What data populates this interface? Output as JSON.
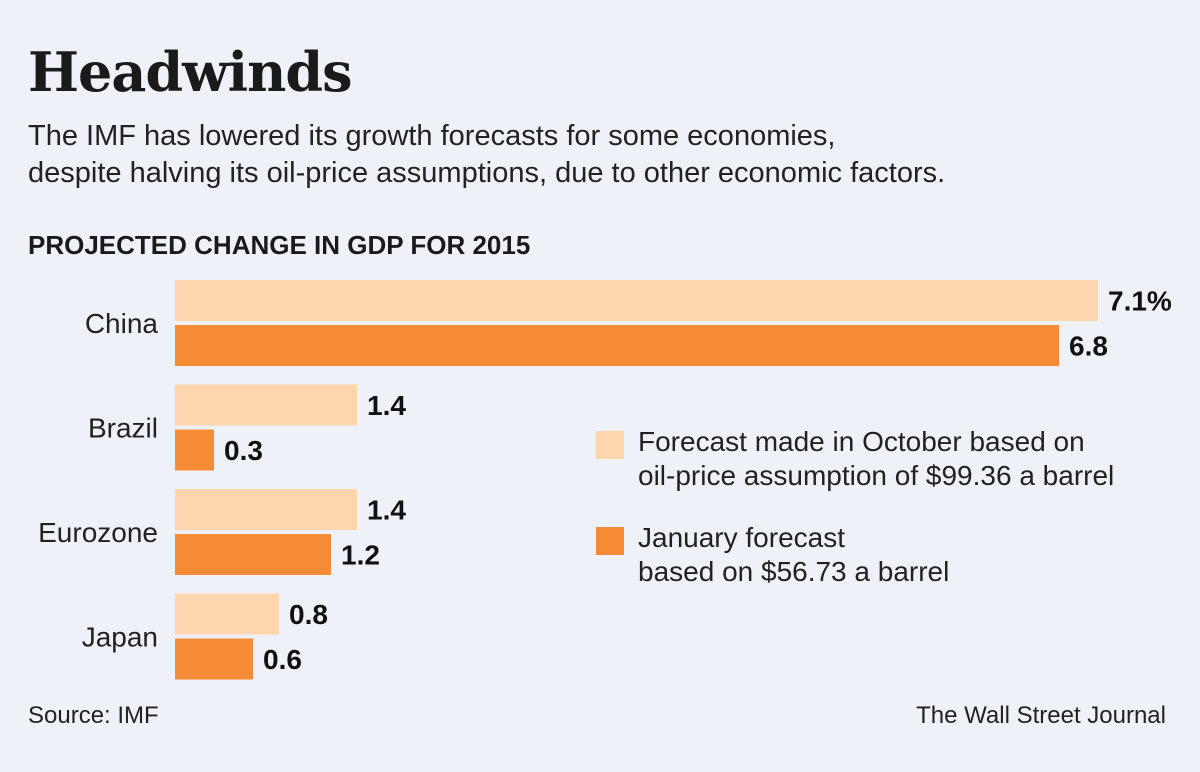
{
  "title": "Headwinds",
  "subtitle_line1": "The IMF has lowered its growth forecasts for some economies,",
  "subtitle_line2": "despite halving its oil-price assumptions, due to other economic factors.",
  "chart_heading": "PROJECTED CHANGE IN GDP FOR 2015",
  "colors": {
    "october": "#fdd5ae",
    "january": "#f68b35",
    "background": "#eef2f8"
  },
  "legend": {
    "october_line1": "Forecast made in October based on",
    "october_line2": "oil-price assumption of $99.36 a barrel",
    "january_line1": "January forecast",
    "january_line2": "based on $56.73 a barrel"
  },
  "source": "Source: IMF",
  "credit": "The Wall Street Journal",
  "chart_data": {
    "type": "bar",
    "orientation": "horizontal",
    "title": "PROJECTED CHANGE IN GDP FOR 2015",
    "categories": [
      "China",
      "Brazil",
      "Eurozone",
      "Japan"
    ],
    "series": [
      {
        "name": "Forecast made in October based on oil-price assumption of $99.36 a barrel",
        "values": [
          7.1,
          1.4,
          1.4,
          0.8
        ],
        "labels": [
          "7.1%",
          "1.4",
          "1.4",
          "0.8"
        ]
      },
      {
        "name": "January forecast based on $56.73 a barrel",
        "values": [
          6.8,
          0.3,
          1.2,
          0.6
        ],
        "labels": [
          "6.8",
          "0.3",
          "1.2",
          "0.6"
        ]
      }
    ],
    "xlim": [
      0,
      7.1
    ],
    "legend_position": "right",
    "grid": false
  }
}
